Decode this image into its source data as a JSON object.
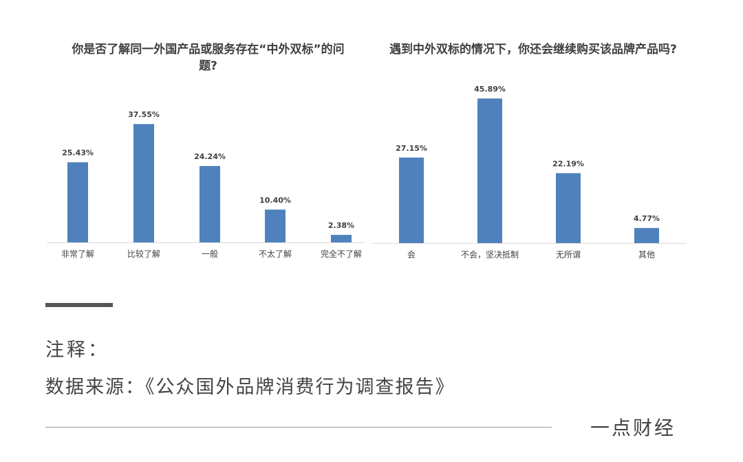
{
  "chart_data": [
    {
      "type": "bar",
      "title": "你是否了解同一外国产品或服务存在“中外双标”的问题?",
      "categories": [
        "非常了解",
        "比较了解",
        "一般",
        "不太了解",
        "完全不了解"
      ],
      "values": [
        25.43,
        37.55,
        24.24,
        10.4,
        2.38
      ],
      "value_labels": [
        "25.43%",
        "37.55%",
        "24.24%",
        "10.40%",
        "2.38%"
      ],
      "unit": "%",
      "color": "#4f81bd",
      "ylim": [
        0,
        50
      ],
      "grid": false,
      "legend": "none"
    },
    {
      "type": "bar",
      "title": "遇到中外双标的情况下，你还会继续购买该品牌产品吗?",
      "categories": [
        "会",
        "不会，坚决抵制",
        "无所谓",
        "其他"
      ],
      "values": [
        27.15,
        45.89,
        22.19,
        4.77
      ],
      "value_labels": [
        "27.15%",
        "45.89%",
        "22.19%",
        "4.77%"
      ],
      "unit": "%",
      "color": "#4f81bd",
      "ylim": [
        0,
        50
      ],
      "grid": false,
      "legend": "none"
    }
  ],
  "notes": {
    "label": "注释：",
    "source": "数据来源：《公众国外品牌消费行为调查报告》"
  },
  "brand": "一点财经"
}
